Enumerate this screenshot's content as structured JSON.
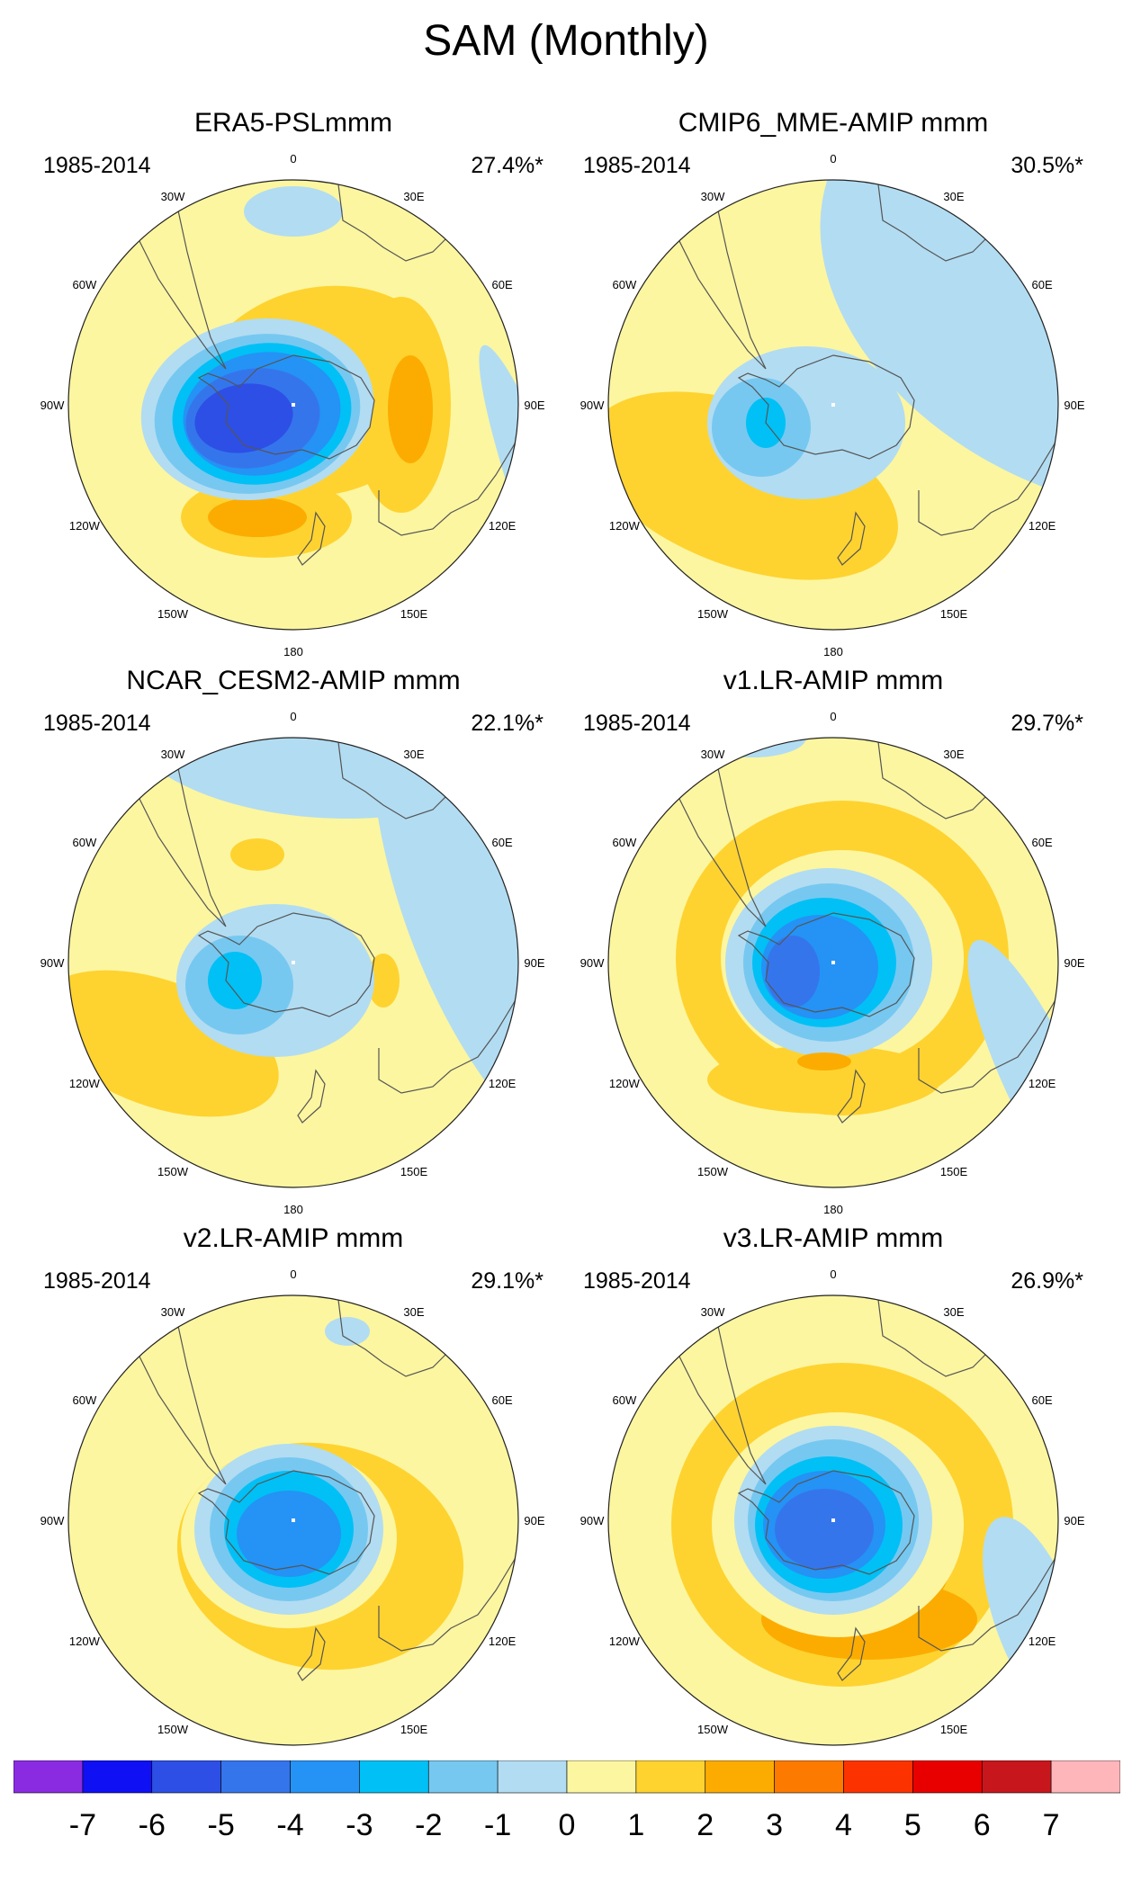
{
  "title": "SAM (Monthly)",
  "lon_labels": [
    "0",
    "30E",
    "60E",
    "90E",
    "120E",
    "150E",
    "180",
    "150W",
    "120W",
    "90W",
    "60W",
    "30W"
  ],
  "palette": {
    "land": "#555555",
    "border": "#222222"
  },
  "panels": [
    {
      "title": "ERA5-PSLmmm",
      "period": "1985-2014",
      "variance": "27.4%*",
      "pattern": "era5"
    },
    {
      "title": "CMIP6_MME-AMIP  mmm",
      "period": "1985-2014",
      "variance": "30.5%*",
      "pattern": "cmip6"
    },
    {
      "title": "NCAR_CESM2-AMIP  mmm",
      "period": "1985-2014",
      "variance": "22.1%*",
      "pattern": "cesm2"
    },
    {
      "title": "v1.LR-AMIP  mmm",
      "period": "1985-2014",
      "variance": "29.7%*",
      "pattern": "v1"
    },
    {
      "title": "v2.LR-AMIP  mmm",
      "period": "1985-2014",
      "variance": "29.1%*",
      "pattern": "v2"
    },
    {
      "title": "v3.LR-AMIP  mmm",
      "period": "1985-2014",
      "variance": "26.9%*",
      "pattern": "v3"
    }
  ],
  "colorbar": {
    "colors": [
      "#8a2be2",
      "#1010f5",
      "#2d4fe6",
      "#3575ec",
      "#2592f5",
      "#00c0f5",
      "#76c8f0",
      "#b2dcf2",
      "#fcf6a0",
      "#fed330",
      "#fcac00",
      "#fc7a00",
      "#fc3300",
      "#e80000",
      "#c8171c",
      "#feb6bb"
    ],
    "labels": [
      "-7",
      "-6",
      "-5",
      "-4",
      "-3",
      "-2",
      "-1",
      "0",
      "1",
      "2",
      "3",
      "4",
      "5",
      "6",
      "7"
    ]
  }
}
